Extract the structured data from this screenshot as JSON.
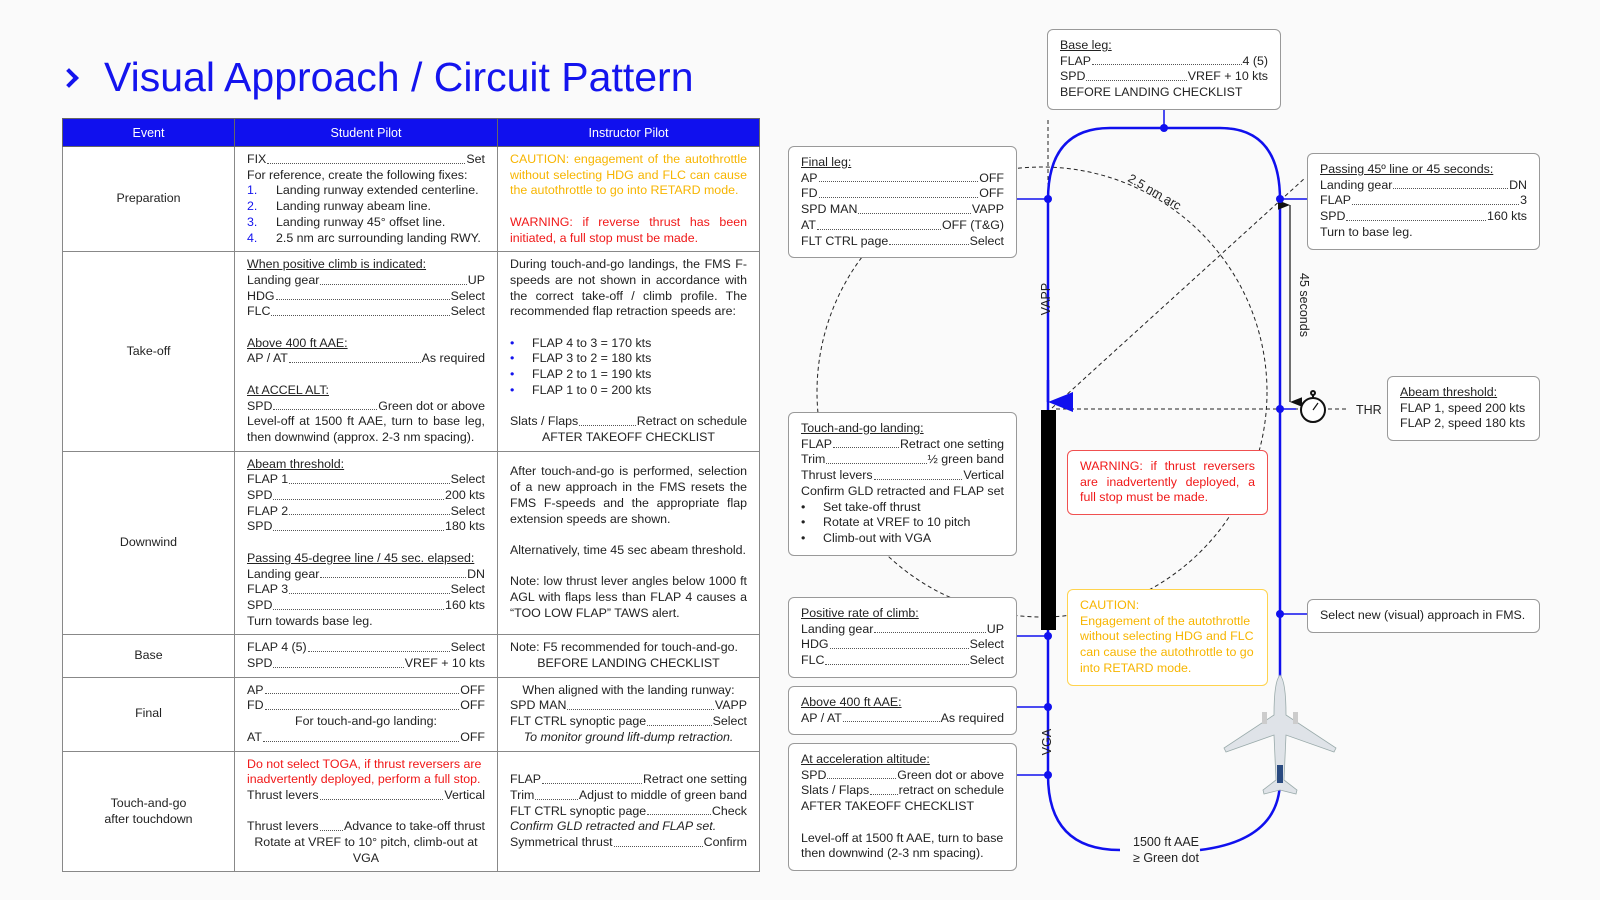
{
  "title": "Visual Approach / Circuit Pattern",
  "colors": {
    "accent": "#1414ee",
    "warning": "#f01818",
    "caution": "#f7b500"
  },
  "table": {
    "headers": [
      "Event",
      "Student Pilot",
      "Instructor Pilot"
    ],
    "rows": [
      {
        "event": "Preparation",
        "student": [
          {
            "l": "FIX",
            "r": "Set"
          },
          {
            "t": "For reference, create the following fixes:"
          },
          {
            "n": "1.",
            "t": "Landing runway extended centerline."
          },
          {
            "n": "2.",
            "t": "Landing runway abeam line."
          },
          {
            "n": "3.",
            "t": "Landing runway 45° offset line."
          },
          {
            "n": "4.",
            "t": "2.5 nm arc surrounding landing RWY."
          }
        ],
        "instructor": [
          {
            "t": "CAUTION: engagement of the autothrottle without selecting HDG and FLC can cause the autothrottle to go into RETARD mode.",
            "cls": "yel j"
          },
          {
            "gap": true
          },
          {
            "t": "WARNING: if reverse thrust has been initiated, a full stop must be made.",
            "cls": "red j"
          }
        ]
      },
      {
        "event": "Take-off",
        "student": [
          {
            "h": "When positive climb is indicated:"
          },
          {
            "l": "Landing gear",
            "r": "UP"
          },
          {
            "l": "HDG",
            "r": "Select"
          },
          {
            "l": "FLC",
            "r": "Select"
          },
          {
            "gap": true
          },
          {
            "h": "Above 400 ft AAE:"
          },
          {
            "l": "AP / AT",
            "r": "As required"
          },
          {
            "gap": true
          },
          {
            "h": "At ACCEL ALT:"
          },
          {
            "l": "SPD",
            "r": "Green dot or above"
          },
          {
            "t": "Level-off at 1500 ft AAE, turn to base leg, then downwind (approx. 2-3 nm spacing).",
            "cls": "j"
          }
        ],
        "instructor": [
          {
            "t": "During touch-and-go landings, the FMS F-speeds are not shown in accordance with the correct take-off / climb profile. The recommended flap retraction speeds are:",
            "cls": "j"
          },
          {
            "gap": true
          },
          {
            "b": "•",
            "t": "FLAP 4 to 3 = 170 kts"
          },
          {
            "b": "•",
            "t": "FLAP 3 to 2 = 180 kts"
          },
          {
            "b": "•",
            "t": "FLAP 2 to 1  = 190 kts"
          },
          {
            "b": "•",
            "t": "FLAP 1 to 0  = 200 kts"
          },
          {
            "gap": true
          },
          {
            "l": "Slats / Flaps",
            "r": "Retract on schedule"
          },
          {
            "t": "AFTER TAKEOFF CHECKLIST",
            "cls": "c"
          }
        ]
      },
      {
        "event": "Downwind",
        "student": [
          {
            "h": "Abeam threshold:"
          },
          {
            "l": "FLAP 1",
            "r": "Select"
          },
          {
            "l": "SPD",
            "r": "200 kts"
          },
          {
            "l": "FLAP 2",
            "r": "Select"
          },
          {
            "l": "SPD",
            "r": "180 kts"
          },
          {
            "gap": true
          },
          {
            "h": "Passing 45-degree line / 45 sec. elapsed:"
          },
          {
            "l": "Landing gear",
            "r": "DN"
          },
          {
            "l": "FLAP 3",
            "r": "Select"
          },
          {
            "l": "SPD",
            "r": "160 kts"
          },
          {
            "t": "Turn towards base leg."
          }
        ],
        "instructor": [
          {
            "t": "After touch-and-go is performed, selection of a new approach in the FMS resets the FMS F-speeds and the appropriate flap extension speeds are shown.",
            "cls": "j"
          },
          {
            "gap": true
          },
          {
            "t": "Alternatively, time 45 sec abeam threshold."
          },
          {
            "gap": true
          },
          {
            "t": "Note: low thrust lever angles below 1000 ft AGL with flaps less than FLAP 4 causes a “TOO LOW FLAP” TAWS alert.",
            "cls": "j"
          }
        ]
      },
      {
        "event": "Base",
        "student": [
          {
            "l": "FLAP 4 (5)",
            "r": "Select"
          },
          {
            "l": "SPD",
            "r": "VREF + 10 kts"
          }
        ],
        "instructor": [
          {
            "t": "Note: F5 recommended for touch-and-go."
          },
          {
            "t": "BEFORE LANDING CHECKLIST",
            "cls": "c"
          }
        ]
      },
      {
        "event": "Final",
        "student": [
          {
            "l": "AP",
            "r": "OFF"
          },
          {
            "l": "FD",
            "r": "OFF"
          },
          {
            "t": "For touch-and-go landing:",
            "cls": "c"
          },
          {
            "l": "AT",
            "r": "OFF"
          }
        ],
        "instructor": [
          {
            "t": "When aligned with the landing runway:",
            "cls": "c"
          },
          {
            "l": "SPD MAN",
            "r": "VAPP"
          },
          {
            "l": "FLT CTRL synoptic page",
            "r": "Select"
          },
          {
            "t": "To monitor ground lift-dump retraction.",
            "cls": "c i"
          }
        ]
      },
      {
        "event": "Touch-and-go\nafter touchdown",
        "student": [
          {
            "t": "Do not select TOGA, if thrust reversers are inadvertently deployed, perform a full stop.",
            "cls": "red"
          },
          {
            "l": "Thrust levers",
            "r": "Vertical"
          },
          {
            "gap": true
          },
          {
            "l": "Thrust levers",
            "r": "Advance to take-off thrust"
          },
          {
            "t": "Rotate at VREF to 10° pitch, climb-out at VGA",
            "cls": "c"
          }
        ],
        "instructor": [
          {
            "l": "FLAP",
            "r": "Retract one setting"
          },
          {
            "l": "Trim",
            "r": "Adjust to middle of green band"
          },
          {
            "l": "FLT CTRL synoptic page",
            "r": "Check"
          },
          {
            "t": "Confirm GLD retracted and FLAP set.",
            "cls": "i"
          },
          {
            "l": "Symmetrical thrust",
            "r": "Confirm"
          }
        ]
      }
    ]
  },
  "diagram": {
    "boxes": {
      "base": [
        {
          "h": "Base leg:"
        },
        {
          "l": "FLAP",
          "r": "4 (5)"
        },
        {
          "l": "SPD",
          "r": "VREF + 10 kts"
        },
        {
          "t": "BEFORE LANDING CHECKLIST"
        }
      ],
      "final": [
        {
          "h": "Final leg:"
        },
        {
          "l": "AP",
          "r": "OFF"
        },
        {
          "l": "FD",
          "r": "OFF"
        },
        {
          "l": "SPD MAN",
          "r": "VAPP"
        },
        {
          "l": "AT",
          "r": "OFF (T&G)"
        },
        {
          "l": "FLT CTRL page",
          "r": "Select"
        }
      ],
      "passing": [
        {
          "h": "Passing 45º line or 45 seconds:"
        },
        {
          "l": "Landing gear",
          "r": "DN"
        },
        {
          "l": "FLAP",
          "r": "3"
        },
        {
          "l": "SPD",
          "r": "160 kts"
        },
        {
          "t": "Turn to base leg."
        }
      ],
      "abeam": [
        {
          "h": "Abeam threshold:"
        },
        {
          "t": "FLAP 1, speed 200 kts"
        },
        {
          "t": "FLAP 2, speed 180 kts"
        }
      ],
      "tng": [
        {
          "h": "Touch-and-go landing:"
        },
        {
          "l": "FLAP",
          "r": "Retract one setting"
        },
        {
          "l": "Trim",
          "r": "½ green band"
        },
        {
          "l": "Thrust levers",
          "r": "Vertical"
        },
        {
          "t": "Confirm GLD retracted and FLAP set"
        },
        {
          "b": "•",
          "t": "Set take-off thrust",
          "k": true
        },
        {
          "b": "•",
          "t": "Rotate at VREF to 10 pitch",
          "k": true
        },
        {
          "b": "•",
          "t": "Climb-out with VGA",
          "k": true
        }
      ],
      "warning": [
        {
          "t": "WARNING: if thrust reversers are inadvertently deployed, a full stop must be made.",
          "cls": "red j"
        }
      ],
      "caution": [
        {
          "t": "CAUTION:",
          "cls": "yel"
        },
        {
          "t": "Engagement of the autothrottle without selecting HDG and FLC can cause the autothrottle to go into RETARD mode.",
          "cls": "yel"
        }
      ],
      "select": [
        {
          "t": "Select new (visual) approach in FMS."
        }
      ],
      "posclimb": [
        {
          "h": "Positive rate of climb:"
        },
        {
          "l": "Landing gear",
          "r": "UP"
        },
        {
          "l": "HDG",
          "r": "Select"
        },
        {
          "l": "FLC",
          "r": "Select"
        }
      ],
      "above400": [
        {
          "h": "Above 400 ft AAE:"
        },
        {
          "l": "AP / AT",
          "r": "As required"
        }
      ],
      "accel": [
        {
          "h": "At acceleration altitude:"
        },
        {
          "l": "SPD",
          "r": "Green dot or above"
        },
        {
          "l": "Slats / Flaps",
          "r": "retract on schedule"
        },
        {
          "t": "AFTER TAKEOFF CHECKLIST"
        },
        {
          "gap": true
        },
        {
          "t": "Level-off at 1500 ft AAE, turn to base then downwind (2-3 nm spacing)."
        }
      ]
    },
    "labels": {
      "arc": "2.5 nm arc",
      "vapp": "VAPP",
      "seconds": "45 seconds",
      "thr": "THR",
      "vga": "VGA",
      "alt1": "1500 ft AAE",
      "alt2": "≥ Green dot"
    },
    "icons": [
      "stopwatch-icon",
      "airplane-icon"
    ]
  }
}
